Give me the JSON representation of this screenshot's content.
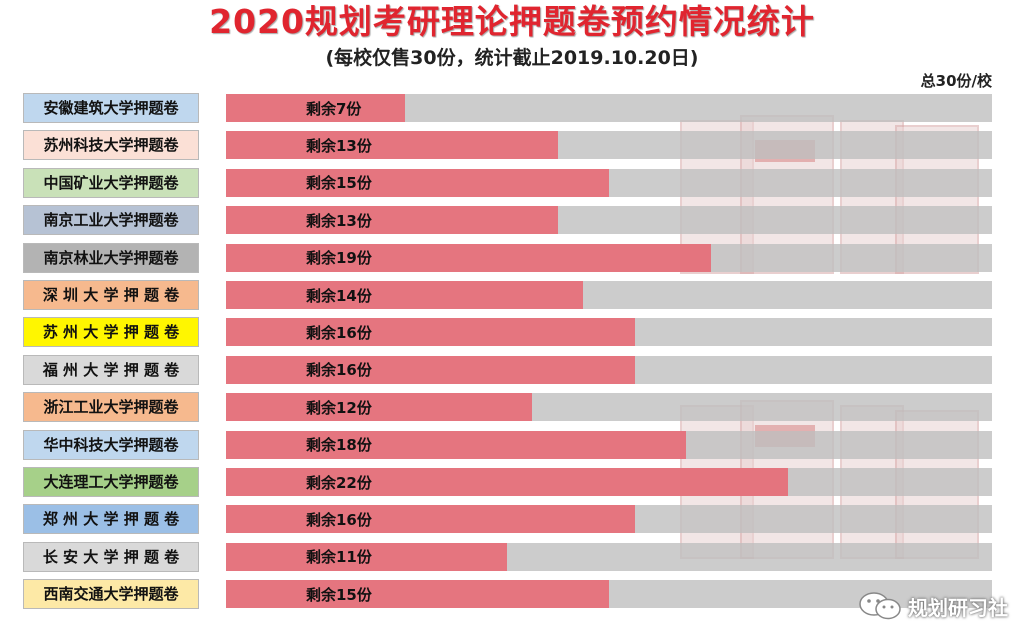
{
  "title": "2020规划考研理论押题卷预约情况统计",
  "subtitle": "(每校仅售30份，统计截止2019.10.20日)",
  "total_note": "总30份/校",
  "watermark_brand": "规划研习社",
  "chart_data": {
    "type": "bar",
    "orientation": "horizontal",
    "title": "2020规划考研理论押题卷预约情况统计",
    "subtitle": "(每校仅售30份，统计截止2019.10.20日)",
    "total": 30,
    "xlim": [
      0,
      30
    ],
    "grid": false,
    "legend": "none",
    "value_prefix": "剩余",
    "value_suffix": "份",
    "bar_color": "#e66e78",
    "track_color": "#bebebe",
    "categories": [
      {
        "label": "安徽建筑大学押题卷",
        "label_bg": "#bfd7ee",
        "remaining": 7
      },
      {
        "label": "苏州科技大学押题卷",
        "label_bg": "#fbe0d6",
        "remaining": 13
      },
      {
        "label": "中国矿业大学押题卷",
        "label_bg": "#c9e1b8",
        "remaining": 15
      },
      {
        "label": "南京工业大学押题卷",
        "label_bg": "#b6c2d4",
        "remaining": 13
      },
      {
        "label": "南京林业大学押题卷",
        "label_bg": "#b3b3b3",
        "remaining": 19
      },
      {
        "label": "深 圳 大 学 押 题 卷",
        "label_bg": "#f6b98e",
        "remaining": 14
      },
      {
        "label": "苏 州 大 学 押 题 卷",
        "label_bg": "#fff600",
        "remaining": 16
      },
      {
        "label": "福 州 大 学 押 题 卷",
        "label_bg": "#d9d9d9",
        "remaining": 16
      },
      {
        "label": "浙江工业大学押题卷",
        "label_bg": "#f6b98e",
        "remaining": 12
      },
      {
        "label": "华中科技大学押题卷",
        "label_bg": "#bfd7ee",
        "remaining": 18
      },
      {
        "label": "大连理工大学押题卷",
        "label_bg": "#a6d089",
        "remaining": 22
      },
      {
        "label": "郑 州 大 学 押 题 卷",
        "label_bg": "#9bbfe6",
        "remaining": 16
      },
      {
        "label": "长 安 大 学 押 题 卷",
        "label_bg": "#d9d9d9",
        "remaining": 11
      },
      {
        "label": "西南交通大学押题卷",
        "label_bg": "#fde9a6",
        "remaining": 15
      }
    ]
  }
}
